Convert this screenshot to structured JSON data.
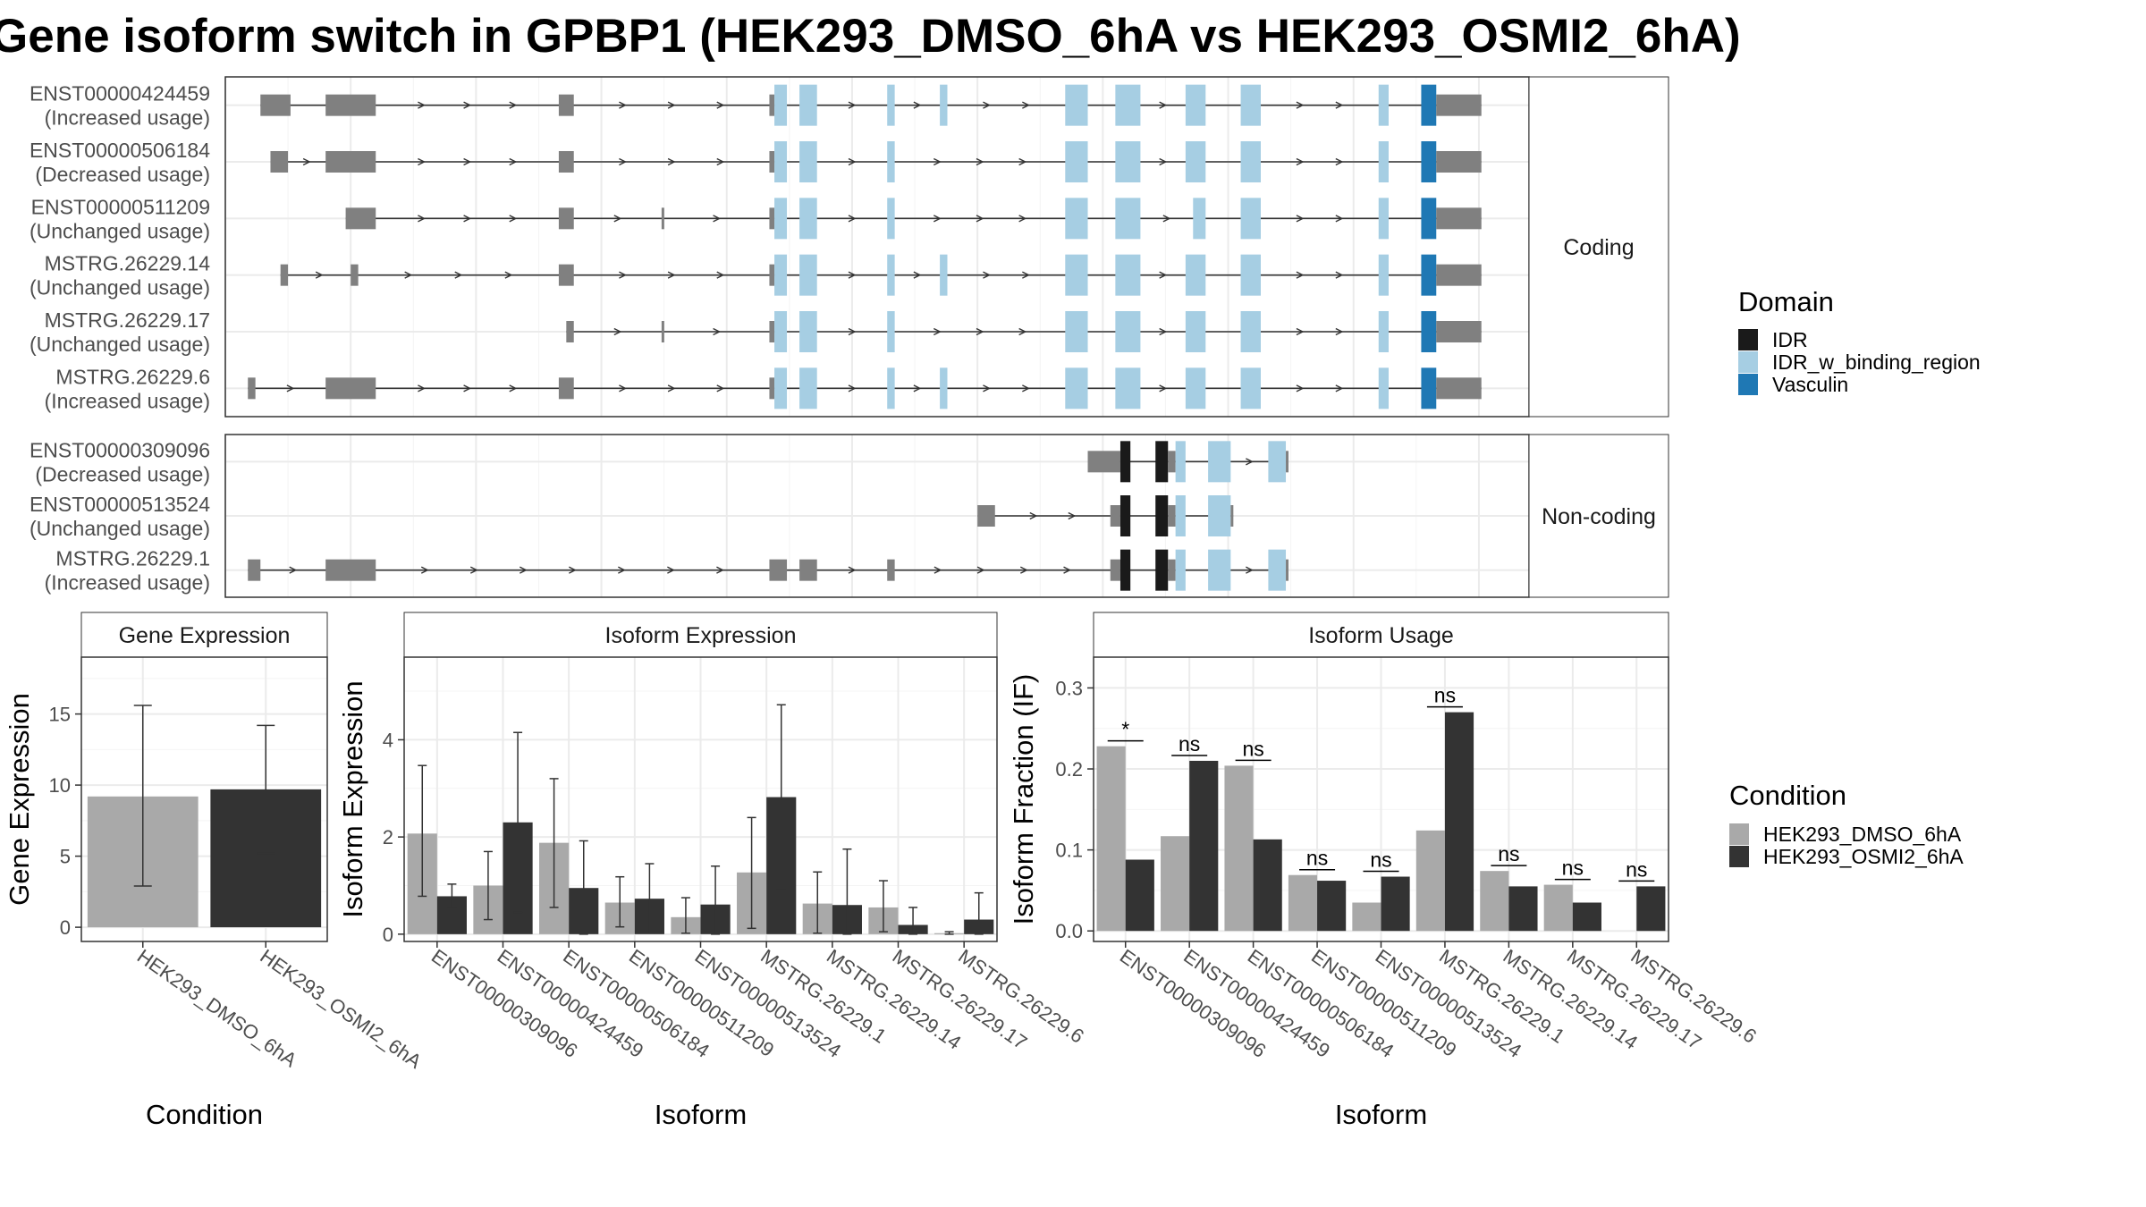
{
  "title": "Gene isoform switch in GPBP1 (HEK293_DMSO_6hA vs HEK293_OSMI2_6hA)",
  "colors": {
    "cond1": "#a9a9a9",
    "cond2": "#333333",
    "exon": "#808080",
    "IDR": "#1a1a1a",
    "IDR_w_binding_region": "#a6cee3",
    "Vasculin": "#1f78b4"
  },
  "domain_legend": {
    "title": "Domain",
    "items": [
      "IDR",
      "IDR_w_binding_region",
      "Vasculin"
    ]
  },
  "condition_legend": {
    "title": "Condition",
    "items": [
      "HEK293_DMSO_6hA",
      "HEK293_OSMI2_6hA"
    ]
  },
  "structure": {
    "groups": [
      {
        "label": "Coding",
        "rows": [
          {
            "id": "ENST00000424459",
            "usage": "(Increased usage)",
            "exons": [
              [
                14,
                26,
                "exon"
              ],
              [
                40,
                60,
                "exon"
              ],
              [
                133,
                139,
                "exon"
              ],
              [
                217,
                219,
                "exon"
              ],
              [
                219,
                224,
                "IDR_w_binding_region"
              ],
              [
                229,
                236,
                "IDR_w_binding_region"
              ],
              [
                264,
                267,
                "IDR_w_binding_region"
              ],
              [
                285,
                288,
                "IDR_w_binding_region"
              ],
              [
                335,
                344,
                "IDR_w_binding_region"
              ],
              [
                355,
                365,
                "IDR_w_binding_region"
              ],
              [
                383,
                391,
                "IDR_w_binding_region"
              ],
              [
                405,
                413,
                "IDR_w_binding_region"
              ],
              [
                460,
                464,
                "IDR_w_binding_region"
              ],
              [
                477,
                483,
                "Vasculin"
              ],
              [
                483,
                501,
                "exon"
              ]
            ]
          },
          {
            "id": "ENST00000506184",
            "usage": "(Decreased usage)",
            "exons": [
              [
                18,
                25,
                "exon"
              ],
              [
                40,
                60,
                "exon"
              ],
              [
                133,
                139,
                "exon"
              ],
              [
                217,
                219,
                "exon"
              ],
              [
                219,
                224,
                "IDR_w_binding_region"
              ],
              [
                229,
                236,
                "IDR_w_binding_region"
              ],
              [
                264,
                267,
                "IDR_w_binding_region"
              ],
              [
                335,
                344,
                "IDR_w_binding_region"
              ],
              [
                355,
                365,
                "IDR_w_binding_region"
              ],
              [
                383,
                391,
                "IDR_w_binding_region"
              ],
              [
                405,
                413,
                "IDR_w_binding_region"
              ],
              [
                460,
                464,
                "IDR_w_binding_region"
              ],
              [
                477,
                483,
                "Vasculin"
              ],
              [
                483,
                501,
                "exon"
              ]
            ]
          },
          {
            "id": "ENST00000511209",
            "usage": "(Unchanged usage)",
            "exons": [
              [
                48,
                60,
                "exon"
              ],
              [
                133,
                139,
                "exon"
              ],
              [
                174,
                175,
                "exon"
              ],
              [
                217,
                219,
                "exon"
              ],
              [
                219,
                224,
                "IDR_w_binding_region"
              ],
              [
                229,
                236,
                "IDR_w_binding_region"
              ],
              [
                264,
                267,
                "IDR_w_binding_region"
              ],
              [
                335,
                344,
                "IDR_w_binding_region"
              ],
              [
                355,
                365,
                "IDR_w_binding_region"
              ],
              [
                386,
                391,
                "IDR_w_binding_region"
              ],
              [
                405,
                413,
                "IDR_w_binding_region"
              ],
              [
                460,
                464,
                "IDR_w_binding_region"
              ],
              [
                477,
                483,
                "Vasculin"
              ],
              [
                483,
                501,
                "exon"
              ]
            ]
          },
          {
            "id": "MSTRG.26229.14",
            "usage": "(Unchanged usage)",
            "exons": [
              [
                22,
                25,
                "exon"
              ],
              [
                50,
                53,
                "exon"
              ],
              [
                133,
                139,
                "exon"
              ],
              [
                217,
                219,
                "exon"
              ],
              [
                219,
                224,
                "IDR_w_binding_region"
              ],
              [
                229,
                236,
                "IDR_w_binding_region"
              ],
              [
                264,
                267,
                "IDR_w_binding_region"
              ],
              [
                285,
                288,
                "IDR_w_binding_region"
              ],
              [
                335,
                344,
                "IDR_w_binding_region"
              ],
              [
                355,
                365,
                "IDR_w_binding_region"
              ],
              [
                383,
                391,
                "IDR_w_binding_region"
              ],
              [
                405,
                413,
                "IDR_w_binding_region"
              ],
              [
                460,
                464,
                "IDR_w_binding_region"
              ],
              [
                477,
                483,
                "Vasculin"
              ],
              [
                483,
                501,
                "exon"
              ]
            ]
          },
          {
            "id": "MSTRG.26229.17",
            "usage": "(Unchanged usage)",
            "exons": [
              [
                136,
                139,
                "exon"
              ],
              [
                174,
                175,
                "exon"
              ],
              [
                217,
                219,
                "exon"
              ],
              [
                219,
                224,
                "IDR_w_binding_region"
              ],
              [
                229,
                236,
                "IDR_w_binding_region"
              ],
              [
                264,
                267,
                "IDR_w_binding_region"
              ],
              [
                335,
                344,
                "IDR_w_binding_region"
              ],
              [
                355,
                365,
                "IDR_w_binding_region"
              ],
              [
                383,
                391,
                "IDR_w_binding_region"
              ],
              [
                405,
                413,
                "IDR_w_binding_region"
              ],
              [
                460,
                464,
                "IDR_w_binding_region"
              ],
              [
                477,
                483,
                "Vasculin"
              ],
              [
                483,
                501,
                "exon"
              ]
            ]
          },
          {
            "id": "MSTRG.26229.6",
            "usage": "(Increased usage)",
            "exons": [
              [
                9,
                12,
                "exon"
              ],
              [
                40,
                60,
                "exon"
              ],
              [
                133,
                139,
                "exon"
              ],
              [
                217,
                219,
                "exon"
              ],
              [
                219,
                224,
                "IDR_w_binding_region"
              ],
              [
                229,
                236,
                "IDR_w_binding_region"
              ],
              [
                264,
                267,
                "IDR_w_binding_region"
              ],
              [
                285,
                288,
                "IDR_w_binding_region"
              ],
              [
                335,
                344,
                "IDR_w_binding_region"
              ],
              [
                355,
                365,
                "IDR_w_binding_region"
              ],
              [
                383,
                391,
                "IDR_w_binding_region"
              ],
              [
                405,
                413,
                "IDR_w_binding_region"
              ],
              [
                460,
                464,
                "IDR_w_binding_region"
              ],
              [
                477,
                483,
                "Vasculin"
              ],
              [
                483,
                501,
                "exon"
              ]
            ]
          }
        ]
      },
      {
        "label": "Non-coding",
        "rows": [
          {
            "id": "ENST00000309096",
            "usage": "(Decreased usage)",
            "exons": [
              [
                344,
                357,
                "exon"
              ],
              [
                357,
                361,
                "IDR"
              ],
              [
                371,
                376,
                "IDR"
              ],
              [
                376,
                379,
                "exon"
              ],
              [
                379,
                383,
                "IDR_w_binding_region"
              ],
              [
                392,
                401,
                "IDR_w_binding_region"
              ],
              [
                416,
                423,
                "IDR_w_binding_region"
              ],
              [
                423,
                424,
                "exon"
              ]
            ]
          },
          {
            "id": "ENST00000513524",
            "usage": "(Unchanged usage)",
            "exons": [
              [
                300,
                307,
                "exon"
              ],
              [
                353,
                357,
                "exon"
              ],
              [
                357,
                361,
                "IDR"
              ],
              [
                371,
                376,
                "IDR"
              ],
              [
                376,
                379,
                "exon"
              ],
              [
                379,
                383,
                "IDR_w_binding_region"
              ],
              [
                392,
                401,
                "IDR_w_binding_region"
              ],
              [
                401,
                402,
                "exon"
              ]
            ]
          },
          {
            "id": "MSTRG.26229.1",
            "usage": "(Increased usage)",
            "exons": [
              [
                9,
                14,
                "exon"
              ],
              [
                40,
                60,
                "exon"
              ],
              [
                217,
                224,
                "exon"
              ],
              [
                229,
                236,
                "exon"
              ],
              [
                264,
                267,
                "exon"
              ],
              [
                353,
                357,
                "exon"
              ],
              [
                357,
                361,
                "IDR"
              ],
              [
                371,
                376,
                "IDR"
              ],
              [
                376,
                379,
                "exon"
              ],
              [
                379,
                383,
                "IDR_w_binding_region"
              ],
              [
                392,
                401,
                "IDR_w_binding_region"
              ],
              [
                416,
                423,
                "IDR_w_binding_region"
              ],
              [
                423,
                424,
                "exon"
              ]
            ]
          }
        ]
      }
    ]
  },
  "chart_data": [
    {
      "type": "bar",
      "strip": "Gene Expression",
      "xlabel": "Condition",
      "ylabel": "Gene Expression",
      "ylim": [
        -1,
        19
      ],
      "yticks": [
        0,
        5,
        10,
        15
      ],
      "categories": [
        "HEK293_DMSO_6hA",
        "HEK293_OSMI2_6hA"
      ],
      "values": [
        9.2,
        9.7
      ],
      "errors": [
        [
          2.9,
          15.6
        ],
        [
          5.2,
          14.2
        ]
      ]
    },
    {
      "type": "bar",
      "strip": "Isoform Expression",
      "xlabel": "Isoform",
      "ylabel": "Isoform Expression",
      "ylim": [
        -0.15,
        5.7
      ],
      "yticks": [
        0,
        2,
        4
      ],
      "categories": [
        "ENST00000309096",
        "ENST00000424459",
        "ENST00000506184",
        "ENST00000511209",
        "ENST00000513524",
        "MSTRG.26229.1",
        "MSTRG.26229.14",
        "MSTRG.26229.17",
        "MSTRG.26229.6"
      ],
      "series": [
        {
          "name": "HEK293_DMSO_6hA",
          "values": [
            2.07,
            1.0,
            1.88,
            0.65,
            0.35,
            1.27,
            0.63,
            0.55,
            0.02
          ],
          "errors": [
            [
              0.78,
              3.47
            ],
            [
              0.3,
              1.7
            ],
            [
              0.55,
              3.2
            ],
            [
              0.15,
              1.18
            ],
            [
              0.02,
              0.75
            ],
            [
              0.12,
              2.4
            ],
            [
              0.02,
              1.28
            ],
            [
              0.05,
              1.1
            ],
            [
              0.0,
              0.05
            ]
          ]
        },
        {
          "name": "HEK293_OSMI2_6hA",
          "values": [
            0.78,
            2.3,
            0.95,
            0.73,
            0.61,
            2.82,
            0.6,
            0.19,
            0.3
          ],
          "errors": [
            [
              0.55,
              1.03
            ],
            [
              0.45,
              4.15
            ],
            [
              0.0,
              1.92
            ],
            [
              0.02,
              1.45
            ],
            [
              0.0,
              1.4
            ],
            [
              0.92,
              4.72
            ],
            [
              0.0,
              1.75
            ],
            [
              0.0,
              0.55
            ],
            [
              0.0,
              0.85
            ]
          ]
        }
      ]
    },
    {
      "type": "bar",
      "strip": "Isoform Usage",
      "xlabel": "Isoform",
      "ylabel": "Isoform Fraction (IF)",
      "ylim": [
        -0.013,
        0.338
      ],
      "yticks": [
        0.0,
        0.1,
        0.2,
        0.3
      ],
      "ytick_labels": [
        "0.0",
        "0.1",
        "0.2",
        "0.3"
      ],
      "categories": [
        "ENST00000309096",
        "ENST00000424459",
        "ENST00000506184",
        "ENST00000511209",
        "ENST00000513524",
        "MSTRG.26229.1",
        "MSTRG.26229.14",
        "MSTRG.26229.17",
        "MSTRG.26229.6"
      ],
      "series": [
        {
          "name": "HEK293_DMSO_6hA",
          "values": [
            0.228,
            0.117,
            0.204,
            0.069,
            0.035,
            0.124,
            0.074,
            0.057,
            0.0
          ]
        },
        {
          "name": "HEK293_OSMI2_6hA",
          "values": [
            0.088,
            0.21,
            0.113,
            0.062,
            0.067,
            0.27,
            0.055,
            0.035,
            0.055
          ]
        }
      ],
      "significance": [
        "*",
        "ns",
        "ns",
        "ns",
        "ns",
        "ns",
        "ns",
        "ns",
        "ns"
      ]
    }
  ]
}
